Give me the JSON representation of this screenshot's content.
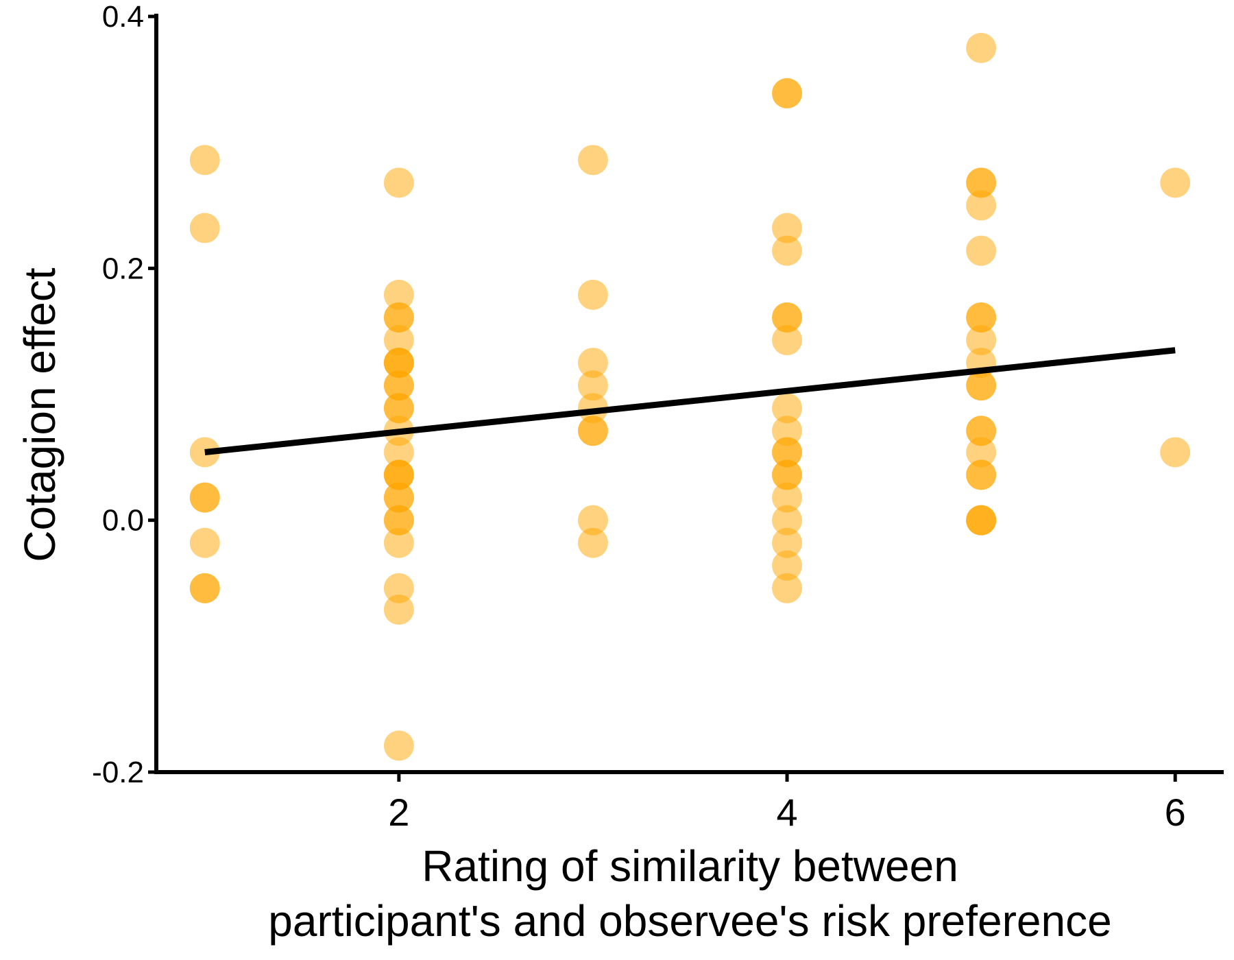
{
  "chart_data": {
    "type": "scatter",
    "title": "",
    "xlabel": [
      "Rating of similarity between",
      "participant's and observee's risk preference"
    ],
    "ylabel": "Cotagion effect",
    "xlim": [
      0.75,
      6.25
    ],
    "ylim": [
      -0.2,
      0.4
    ],
    "x_ticks": [
      2,
      4,
      6
    ],
    "y_ticks": [
      -0.2,
      0.0,
      0.2,
      0.4
    ],
    "y_tick_labels": [
      "-0.2",
      "0.0",
      "0.2",
      "0.4"
    ],
    "x_tick_labels": [
      "2",
      "4",
      "6"
    ],
    "point_color": "#FFA500",
    "point_opacity": 0.5,
    "line_color": "#000000",
    "grid": false,
    "legend": "none",
    "points": [
      {
        "x": 1,
        "y": 0.286
      },
      {
        "x": 1,
        "y": 0.232
      },
      {
        "x": 1,
        "y": 0.054
      },
      {
        "x": 1,
        "y": 0.018
      },
      {
        "x": 1,
        "y": 0.018
      },
      {
        "x": 1,
        "y": -0.018
      },
      {
        "x": 1,
        "y": -0.054
      },
      {
        "x": 1,
        "y": -0.054
      },
      {
        "x": 2,
        "y": 0.268
      },
      {
        "x": 2,
        "y": 0.179
      },
      {
        "x": 2,
        "y": 0.161
      },
      {
        "x": 2,
        "y": 0.161
      },
      {
        "x": 2,
        "y": 0.143
      },
      {
        "x": 2,
        "y": 0.125
      },
      {
        "x": 2,
        "y": 0.125
      },
      {
        "x": 2,
        "y": 0.125
      },
      {
        "x": 2,
        "y": 0.107
      },
      {
        "x": 2,
        "y": 0.107
      },
      {
        "x": 2,
        "y": 0.089
      },
      {
        "x": 2,
        "y": 0.089
      },
      {
        "x": 2,
        "y": 0.071
      },
      {
        "x": 2,
        "y": 0.054
      },
      {
        "x": 2,
        "y": 0.036
      },
      {
        "x": 2,
        "y": 0.036
      },
      {
        "x": 2,
        "y": 0.036
      },
      {
        "x": 2,
        "y": 0.018
      },
      {
        "x": 2,
        "y": 0.018
      },
      {
        "x": 2,
        "y": 0.0
      },
      {
        "x": 2,
        "y": 0.0
      },
      {
        "x": 2,
        "y": -0.018
      },
      {
        "x": 2,
        "y": -0.054
      },
      {
        "x": 2,
        "y": -0.071
      },
      {
        "x": 2,
        "y": -0.179
      },
      {
        "x": 3,
        "y": 0.286
      },
      {
        "x": 3,
        "y": 0.179
      },
      {
        "x": 3,
        "y": 0.125
      },
      {
        "x": 3,
        "y": 0.107
      },
      {
        "x": 3,
        "y": 0.089
      },
      {
        "x": 3,
        "y": 0.071
      },
      {
        "x": 3,
        "y": 0.071
      },
      {
        "x": 3,
        "y": 0.0
      },
      {
        "x": 3,
        "y": -0.018
      },
      {
        "x": 4,
        "y": 0.339
      },
      {
        "x": 4,
        "y": 0.339
      },
      {
        "x": 4,
        "y": 0.232
      },
      {
        "x": 4,
        "y": 0.214
      },
      {
        "x": 4,
        "y": 0.161
      },
      {
        "x": 4,
        "y": 0.161
      },
      {
        "x": 4,
        "y": 0.143
      },
      {
        "x": 4,
        "y": 0.089
      },
      {
        "x": 4,
        "y": 0.071
      },
      {
        "x": 4,
        "y": 0.054
      },
      {
        "x": 4,
        "y": 0.054
      },
      {
        "x": 4,
        "y": 0.036
      },
      {
        "x": 4,
        "y": 0.036
      },
      {
        "x": 4,
        "y": 0.018
      },
      {
        "x": 4,
        "y": 0.0
      },
      {
        "x": 4,
        "y": -0.018
      },
      {
        "x": 4,
        "y": -0.036
      },
      {
        "x": 4,
        "y": -0.054
      },
      {
        "x": 5,
        "y": 0.375
      },
      {
        "x": 5,
        "y": 0.268
      },
      {
        "x": 5,
        "y": 0.268
      },
      {
        "x": 5,
        "y": 0.25
      },
      {
        "x": 5,
        "y": 0.214
      },
      {
        "x": 5,
        "y": 0.161
      },
      {
        "x": 5,
        "y": 0.161
      },
      {
        "x": 5,
        "y": 0.143
      },
      {
        "x": 5,
        "y": 0.125
      },
      {
        "x": 5,
        "y": 0.107
      },
      {
        "x": 5,
        "y": 0.107
      },
      {
        "x": 5,
        "y": 0.071
      },
      {
        "x": 5,
        "y": 0.071
      },
      {
        "x": 5,
        "y": 0.054
      },
      {
        "x": 5,
        "y": 0.036
      },
      {
        "x": 5,
        "y": 0.036
      },
      {
        "x": 5,
        "y": 0.0
      },
      {
        "x": 5,
        "y": 0.0
      },
      {
        "x": 5,
        "y": 0.0
      },
      {
        "x": 6,
        "y": 0.268
      },
      {
        "x": 6,
        "y": 0.054
      }
    ],
    "fit_line": {
      "x": [
        1,
        6
      ],
      "y": [
        0.054,
        0.135
      ]
    }
  }
}
